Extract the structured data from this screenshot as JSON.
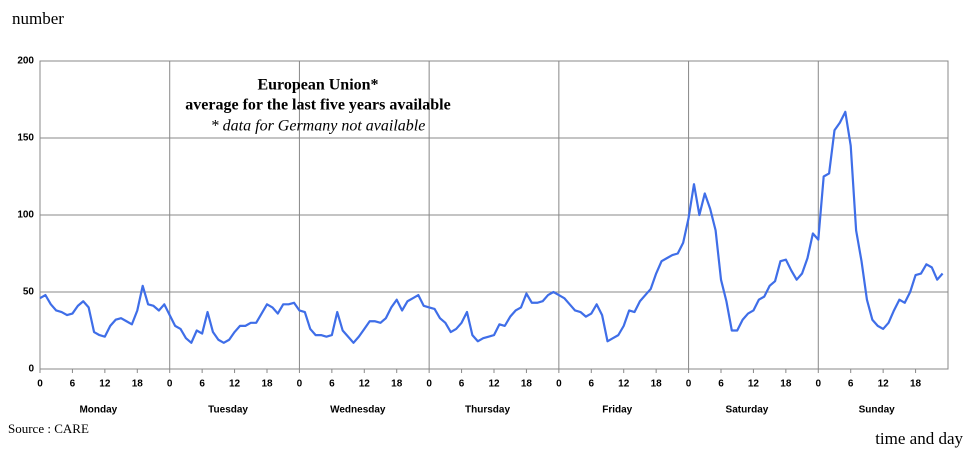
{
  "chart_data": {
    "type": "line",
    "title": "European Union*",
    "subtitle": "average for the last five years available",
    "annotation": "* data for Germany not available",
    "y_label": "number",
    "x_label": "time and day",
    "source": "Source : CARE",
    "day_labels": [
      "Monday",
      "Tuesday",
      "Wednesday",
      "Thursday",
      "Friday",
      "Saturday",
      "Sunday"
    ],
    "x": [
      0,
      1,
      2,
      3,
      4,
      5,
      6,
      7,
      8,
      9,
      10,
      11,
      12,
      13,
      14,
      15,
      16,
      17,
      18,
      19,
      20,
      21,
      22,
      23,
      24,
      25,
      26,
      27,
      28,
      29,
      30,
      31,
      32,
      33,
      34,
      35,
      36,
      37,
      38,
      39,
      40,
      41,
      42,
      43,
      44,
      45,
      46,
      47,
      48,
      49,
      50,
      51,
      52,
      53,
      54,
      55,
      56,
      57,
      58,
      59,
      60,
      61,
      62,
      63,
      64,
      65,
      66,
      67,
      68,
      69,
      70,
      71,
      72,
      73,
      74,
      75,
      76,
      77,
      78,
      79,
      80,
      81,
      82,
      83,
      84,
      85,
      86,
      87,
      88,
      89,
      90,
      91,
      92,
      93,
      94,
      95,
      96,
      97,
      98,
      99,
      100,
      101,
      102,
      103,
      104,
      105,
      106,
      107,
      108,
      109,
      110,
      111,
      112,
      113,
      114,
      115,
      116,
      117,
      118,
      119,
      120,
      121,
      122,
      123,
      124,
      125,
      126,
      127,
      128,
      129,
      130,
      131,
      132,
      133,
      134,
      135,
      136,
      137,
      138,
      139,
      140,
      141,
      142,
      143,
      144,
      145,
      146,
      147,
      148,
      149,
      150,
      151,
      152,
      153,
      154,
      155,
      156,
      157,
      158,
      159,
      160,
      161,
      162,
      163,
      164,
      165,
      166,
      167
    ],
    "values": [
      46,
      48,
      42,
      38,
      37,
      35,
      36,
      41,
      44,
      40,
      24,
      22,
      21,
      28,
      32,
      33,
      31,
      29,
      38,
      54,
      42,
      41,
      38,
      42,
      35,
      28,
      26,
      20,
      17,
      25,
      23,
      37,
      24,
      19,
      17,
      19,
      24,
      28,
      28,
      30,
      30,
      36,
      42,
      40,
      36,
      42,
      42,
      43,
      38,
      37,
      26,
      22,
      22,
      21,
      22,
      37,
      25,
      21,
      17,
      21,
      26,
      31,
      31,
      30,
      33,
      40,
      45,
      38,
      44,
      46,
      48,
      41,
      40,
      39,
      33,
      30,
      24,
      26,
      30,
      37,
      22,
      18,
      20,
      21,
      22,
      29,
      28,
      34,
      38,
      40,
      49,
      43,
      43,
      44,
      48,
      50,
      48,
      46,
      42,
      38,
      37,
      34,
      36,
      42,
      35,
      18,
      20,
      22,
      28,
      38,
      37,
      44,
      48,
      52,
      62,
      70,
      72,
      74,
      75,
      82,
      98,
      120,
      100,
      114,
      104,
      90,
      58,
      44,
      25,
      25,
      32,
      36,
      38,
      45,
      47,
      54,
      57,
      70,
      71,
      64,
      58,
      62,
      72,
      88,
      84,
      125,
      127,
      155,
      160,
      167,
      145,
      90,
      70,
      45,
      32,
      28,
      26,
      30,
      38,
      45,
      43,
      50,
      61,
      62,
      68,
      66,
      58,
      62
    ],
    "color": "#3f6ee8",
    "xlim": [
      0,
      168
    ],
    "ylim": [
      0,
      200
    ],
    "yticks": [
      0,
      50,
      100,
      150,
      200
    ],
    "xticks": [
      0,
      6,
      12,
      18,
      {
        "value": 24,
        "label": "0"
      },
      {
        "value": 30,
        "label": "6"
      },
      {
        "value": 36,
        "label": "12"
      },
      {
        "value": 42,
        "label": "18"
      },
      {
        "value": 48,
        "label": "0"
      },
      {
        "value": 54,
        "label": "6"
      },
      {
        "value": 60,
        "label": "12"
      },
      {
        "value": 66,
        "label": "18"
      },
      {
        "value": 72,
        "label": "0"
      },
      {
        "value": 78,
        "label": "6"
      },
      {
        "value": 84,
        "label": "12"
      },
      {
        "value": 90,
        "label": "18"
      },
      {
        "value": 96,
        "label": "0"
      },
      {
        "value": 102,
        "label": "6"
      },
      {
        "value": 108,
        "label": "12"
      },
      {
        "value": 114,
        "label": "18"
      },
      {
        "value": 120,
        "label": "0"
      },
      {
        "value": 126,
        "label": "6"
      },
      {
        "value": 132,
        "label": "12"
      },
      {
        "value": 138,
        "label": "18"
      },
      {
        "value": 144,
        "label": "0"
      },
      {
        "value": 150,
        "label": "6"
      },
      {
        "value": 156,
        "label": "12"
      },
      {
        "value": 162,
        "label": "18"
      }
    ],
    "day_ticks": [
      {
        "value": 24,
        "label": ""
      }
    ],
    "grid": true
  }
}
